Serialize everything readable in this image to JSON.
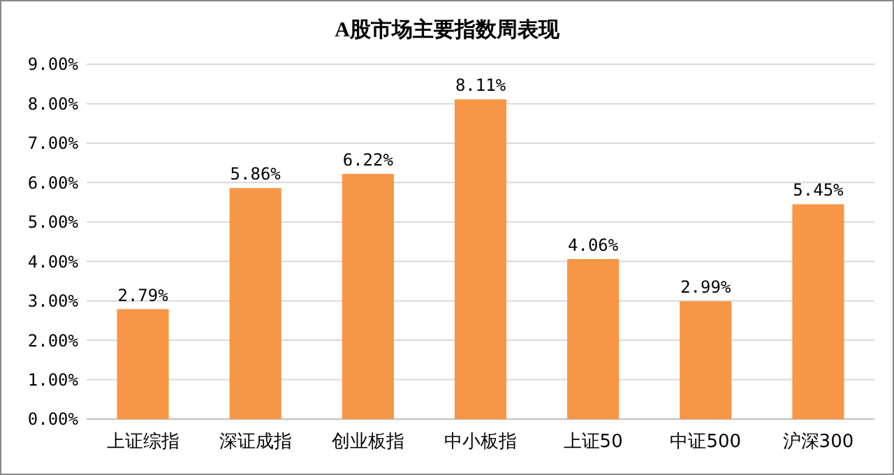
{
  "chart_data": {
    "type": "bar",
    "title": "A股市场主要指数周表现",
    "categories": [
      "上证综指",
      "深证成指",
      "创业板指",
      "中小板指",
      "上证50",
      "中证500",
      "沪深300"
    ],
    "values": [
      2.79,
      5.86,
      6.22,
      8.11,
      4.06,
      2.99,
      5.45
    ],
    "value_labels": [
      "2.79%",
      "5.86%",
      "6.22%",
      "8.11%",
      "4.06%",
      "2.99%",
      "5.45%"
    ],
    "color": "#f79646",
    "ylim": [
      0,
      9
    ],
    "yticks": [
      {
        "value": 0,
        "label": "0.00%"
      },
      {
        "value": 1,
        "label": "1.00%"
      },
      {
        "value": 2,
        "label": "2.00%"
      },
      {
        "value": 3,
        "label": "3.00%"
      },
      {
        "value": 4,
        "label": "4.00%"
      },
      {
        "value": 5,
        "label": "5.00%"
      },
      {
        "value": 6,
        "label": "6.00%"
      },
      {
        "value": 7,
        "label": "7.00%"
      },
      {
        "value": 8,
        "label": "8.00%"
      },
      {
        "value": 9,
        "label": "9.00%"
      }
    ],
    "grid": "y"
  }
}
